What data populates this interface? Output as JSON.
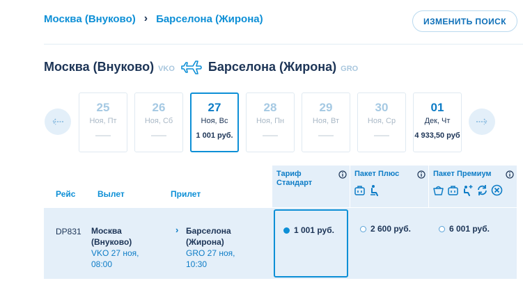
{
  "breadcrumb": {
    "from": "Москва (Внуково)",
    "separator": "›",
    "to": "Барселона (Жирона)"
  },
  "actions": {
    "change_search": "ИЗМЕНИТЬ ПОИСК"
  },
  "route": {
    "from_city": "Москва (Внуково)",
    "from_code": "VKO",
    "to_city": "Барселона (Жирона)",
    "to_code": "GRO"
  },
  "date_nav": {
    "prev_icon": "arrow-left-icon",
    "next_icon": "arrow-right-icon"
  },
  "dates": [
    {
      "day": "25",
      "weekday": "Ноя, Пт",
      "price": "——"
    },
    {
      "day": "26",
      "weekday": "Ноя, Сб",
      "price": "——"
    },
    {
      "day": "27",
      "weekday": "Ноя, Вс",
      "price": "1 001 руб."
    },
    {
      "day": "28",
      "weekday": "Ноя, Пн",
      "price": "——"
    },
    {
      "day": "29",
      "weekday": "Ноя, Вт",
      "price": "——"
    },
    {
      "day": "30",
      "weekday": "Ноя, Ср",
      "price": "——"
    },
    {
      "day": "01",
      "weekday": "Дек, Чт",
      "price": "4 933,50 руб"
    }
  ],
  "selected_date_index": 2,
  "table": {
    "headers": {
      "flight": "Рейс",
      "departure": "Вылет",
      "arrival": "Прилет"
    },
    "tariffs": [
      {
        "name": "Тариф Стандарт",
        "perks": []
      },
      {
        "name": "Пакет Плюс",
        "perks": [
          "baggage-icon",
          "seat-icon"
        ]
      },
      {
        "name": "Пакет Премиум",
        "perks": [
          "carry-on-bag-icon",
          "baggage-icon",
          "seat-plus-icon",
          "exchange-icon",
          "refund-icon"
        ]
      }
    ],
    "rows": [
      {
        "flight_no": "DP831",
        "dep_name_1": "Москва",
        "dep_name_2": "(Внуково)",
        "dep_when_1": "VKO 27 ноя,",
        "dep_when_2": "08:00",
        "arr_arrow": "›",
        "arr_name_1": "Барселона",
        "arr_name_2": "(Жирона)",
        "arr_when_1": "GRO 27 ноя,",
        "arr_when_2": "10:30",
        "fares": [
          "1 001 руб.",
          "2 600 руб.",
          "6 001 руб."
        ],
        "selected_fare_index": 0
      }
    ]
  },
  "colors": {
    "accent": "#0d8fd6",
    "text_dark": "#1c3456",
    "panel_bg": "#e4eff9"
  }
}
